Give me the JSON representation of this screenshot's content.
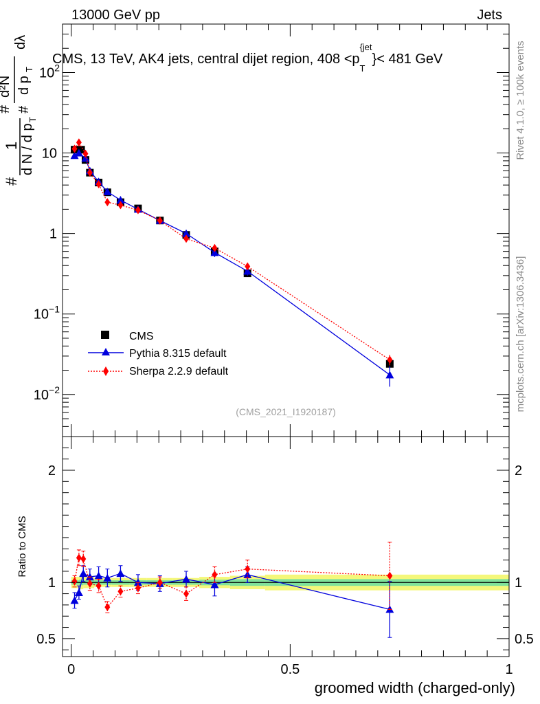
{
  "header": {
    "left": "13000 GeV pp",
    "right": "Jets"
  },
  "side_labels": {
    "rivet": "Rivet 4.1.0, ≥ 100k events",
    "mcplots": "mcplots.cern.ch [arXiv:1306.3436]"
  },
  "chart_data": [
    {
      "id": "main",
      "type": "line",
      "title": "CMS, 13 TeV, AK4 jets, central dijet region, 408 <p_T^{jet}< 481 GeV",
      "title_parts": {
        "main": "CMS, 13 TeV, AK4 jets, central dijet region, 408 <p",
        "sub": "T",
        "sup": "{jet",
        "end": "}< 481 GeV"
      },
      "ylabel": "1/(dN/dp_T) d²N/(dp_T dλ)",
      "ylabel_parts": {
        "hash": "#",
        "one": "1",
        "den_dN": "d N / d p",
        "T": "T",
        "num": "d²N",
        "num_dp": "d p",
        "dl": "dλ"
      },
      "yscale": "log",
      "ylim": [
        0.003,
        400
      ],
      "yticks": [
        {
          "value": 0.01,
          "label": "10",
          "exp": "−2"
        },
        {
          "value": 0.1,
          "label": "10",
          "exp": "−1"
        },
        {
          "value": 1,
          "label": "1",
          "exp": ""
        },
        {
          "value": 10,
          "label": "10",
          "exp": ""
        },
        {
          "value": 100,
          "label": "10",
          "exp": "2"
        }
      ],
      "watermark": "(CMS_2021_I1920187)",
      "legend": {
        "position": "bottom-left",
        "entries": [
          "CMS",
          "Pythia 8.315 default",
          "Sherpa 2.2.9 default"
        ]
      },
      "series": [
        {
          "name": "CMS",
          "color": "#000000",
          "marker": "square",
          "line": "none",
          "x": [
            0.0075,
            0.0225,
            0.0325,
            0.0425,
            0.0625,
            0.0825,
            0.1125,
            0.1525,
            0.2025,
            0.2625,
            0.3275,
            0.4025,
            0.7275
          ],
          "y": [
            11.0,
            11.0,
            8.2,
            5.7,
            4.3,
            3.25,
            2.45,
            2.05,
            1.45,
            0.96,
            0.6,
            0.32,
            0.024
          ],
          "err": [
            0.4,
            0.4,
            0.3,
            0.2,
            0.15,
            0.12,
            0.1,
            0.08,
            0.06,
            0.05,
            0.04,
            0.02,
            0.002
          ]
        },
        {
          "name": "Pythia 8.315 default",
          "color": "#0000dd",
          "marker": "triangle",
          "line": "solid",
          "x": [
            0.0075,
            0.0175,
            0.0325,
            0.0425,
            0.0625,
            0.0825,
            0.1125,
            0.1525,
            0.2025,
            0.2625,
            0.3275,
            0.4025,
            0.7275
          ],
          "y": [
            9.3,
            10.0,
            8.6,
            6.0,
            4.4,
            3.3,
            2.6,
            2.0,
            1.45,
            1.0,
            0.58,
            0.34,
            0.0175
          ],
          "err": [
            0.5,
            0.6,
            0.5,
            0.4,
            0.3,
            0.25,
            0.3,
            0.2,
            0.12,
            0.1,
            0.07,
            0.04,
            0.005
          ]
        },
        {
          "name": "Sherpa 2.2.9 default",
          "color": "#ff0000",
          "marker": "diamond",
          "line": "dotted",
          "x": [
            0.0075,
            0.0175,
            0.0325,
            0.0425,
            0.0625,
            0.0825,
            0.1125,
            0.1525,
            0.2025,
            0.2625,
            0.3275,
            0.4025,
            0.7275
          ],
          "y": [
            11.3,
            13.5,
            9.8,
            5.7,
            4.1,
            2.45,
            2.25,
            1.95,
            1.45,
            0.86,
            0.66,
            0.39,
            0.027
          ],
          "err": [
            0.5,
            0.7,
            0.6,
            0.4,
            0.3,
            0.2,
            0.2,
            0.15,
            0.1,
            0.06,
            0.05,
            0.03,
            0.004
          ]
        }
      ]
    },
    {
      "id": "ratio",
      "type": "line",
      "xlabel": "groomed width (charged-only)",
      "ylabel": "Ratio to CMS",
      "xlim": [
        -0.02,
        1.0
      ],
      "xticks": [
        {
          "value": 0,
          "label": "0"
        },
        {
          "value": 0.5,
          "label": "0.5"
        },
        {
          "value": 1,
          "label": "1"
        }
      ],
      "ylim": [
        0.34,
        2.3
      ],
      "yticks": [
        {
          "value": 0.5,
          "label": "0.5"
        },
        {
          "value": 1,
          "label": "1"
        },
        {
          "value": 2,
          "label": "2"
        }
      ],
      "reference_line": 1,
      "bands": {
        "bins": [
          [
            0,
            0.0175
          ],
          [
            0.0175,
            0.0275
          ],
          [
            0.0275,
            0.0375
          ],
          [
            0.0375,
            0.0525
          ],
          [
            0.0525,
            0.0725
          ],
          [
            0.0725,
            0.0925
          ],
          [
            0.0925,
            0.1325
          ],
          [
            0.1325,
            0.1725
          ],
          [
            0.1725,
            0.2325
          ],
          [
            0.2325,
            0.2925
          ],
          [
            0.2925,
            0.3625
          ],
          [
            0.3625,
            0.4425
          ],
          [
            0.4425,
            1.0
          ]
        ],
        "stat": [
          0.02,
          0.025,
          0.02,
          0.02,
          0.02,
          0.02,
          0.02,
          0.02,
          0.02,
          0.02,
          0.025,
          0.03,
          0.03
        ],
        "total": [
          0.05,
          0.06,
          0.05,
          0.05,
          0.04,
          0.04,
          0.04,
          0.04,
          0.04,
          0.04,
          0.05,
          0.06,
          0.07
        ],
        "stat_color": "#7fe29b",
        "total_color": "#f4f77a"
      },
      "series": [
        {
          "name": "Pythia 8.315 default",
          "color": "#0000dd",
          "marker": "triangle",
          "line": "solid",
          "x": [
            0.0075,
            0.0175,
            0.0275,
            0.0425,
            0.0625,
            0.0825,
            0.1125,
            0.1525,
            0.2025,
            0.2625,
            0.3275,
            0.4025,
            0.7275
          ],
          "y": [
            0.84,
            0.91,
            1.08,
            1.05,
            1.06,
            1.04,
            1.08,
            1.0,
            0.99,
            1.03,
            0.98,
            1.07,
            0.76
          ],
          "err": [
            0.07,
            0.06,
            0.07,
            0.07,
            0.08,
            0.08,
            0.07,
            0.07,
            0.07,
            0.07,
            0.1,
            0.07,
            0.25
          ]
        },
        {
          "name": "Sherpa 2.2.9 default",
          "color": "#ff0000",
          "marker": "diamond",
          "line": "dotted",
          "x": [
            0.0075,
            0.0175,
            0.0275,
            0.0425,
            0.0625,
            0.0825,
            0.1125,
            0.1525,
            0.2025,
            0.2625,
            0.3275,
            0.4025,
            0.7275
          ],
          "y": [
            1.01,
            1.22,
            1.21,
            0.99,
            0.97,
            0.78,
            0.92,
            0.95,
            1.0,
            0.9,
            1.07,
            1.12,
            1.06
          ],
          "err": [
            0.05,
            0.07,
            0.07,
            0.06,
            0.06,
            0.05,
            0.05,
            0.05,
            0.05,
            0.06,
            0.07,
            0.08,
            0.3
          ]
        }
      ]
    }
  ]
}
